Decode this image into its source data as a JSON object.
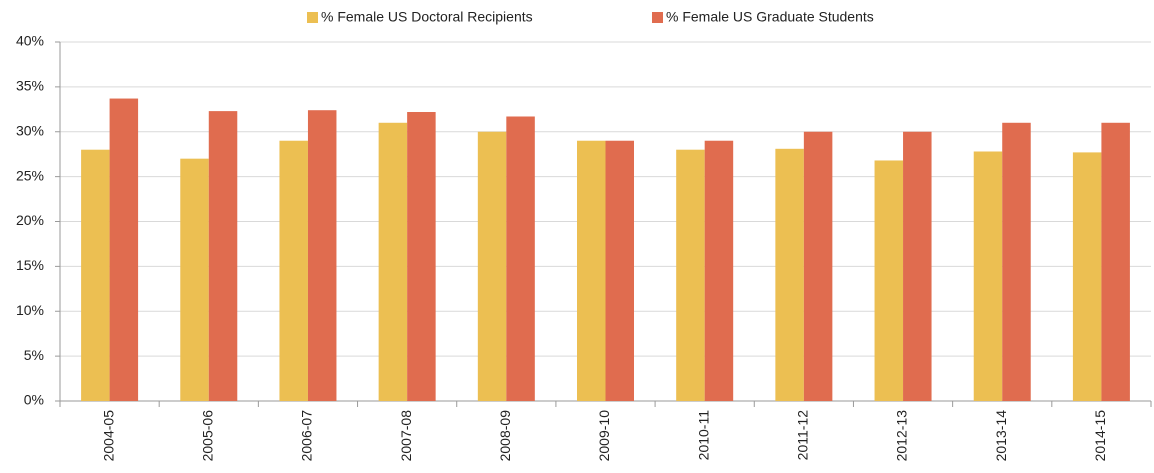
{
  "chart_data": {
    "type": "bar",
    "categories": [
      "2004-05",
      "2005-06",
      "2006-07",
      "2007-08",
      "2008-09",
      "2009-10",
      "2010-11",
      "2011-12",
      "2012-13",
      "2013-14",
      "2014-15"
    ],
    "series": [
      {
        "name": "% Female US Doctoral Recipients",
        "color": "#ecbf52",
        "values": [
          28,
          27,
          29,
          31,
          30,
          29,
          28,
          28.1,
          26.8,
          27.8,
          27.7
        ]
      },
      {
        "name": "% Female US Graduate Students",
        "color": "#e06c4f",
        "values": [
          33.7,
          32.3,
          32.4,
          32.2,
          31.7,
          29,
          29,
          30,
          30,
          31,
          31
        ]
      }
    ],
    "ylim": [
      0,
      40
    ],
    "yticks": [
      {
        "value": 0,
        "label": "0%"
      },
      {
        "value": 5,
        "label": "5%"
      },
      {
        "value": 10,
        "label": "10%"
      },
      {
        "value": 15,
        "label": "15%"
      },
      {
        "value": 20,
        "label": "20%"
      },
      {
        "value": 25,
        "label": "25%"
      },
      {
        "value": 30,
        "label": "30%"
      },
      {
        "value": 35,
        "label": "35%"
      },
      {
        "value": 40,
        "label": "40%"
      }
    ],
    "grid": true,
    "legend": "top"
  }
}
